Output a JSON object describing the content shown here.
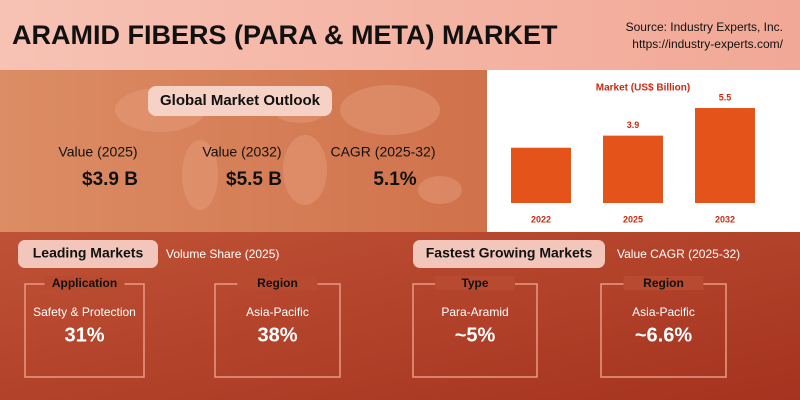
{
  "header": {
    "title": "ARAMID FIBERS (PARA & META) MARKET",
    "source": [
      "Source: Industry Experts, Inc.",
      "https://industry-experts.com/"
    ]
  },
  "outlook": {
    "title": "Global Market Outlook",
    "metrics": [
      {
        "label": "Value (2025)",
        "value": "$3.9 B"
      },
      {
        "label": "Value (2032)",
        "value": "$5.5 B"
      },
      {
        "label": "CAGR (2025-32)",
        "value": "5.1%"
      }
    ]
  },
  "chart_data": {
    "type": "bar",
    "title": "Market (US$ Billion)",
    "categories": [
      "2022",
      "2025",
      "2032"
    ],
    "values": [
      3.2,
      3.9,
      5.5
    ],
    "value_labels": [
      null,
      "3.9",
      "5.5"
    ],
    "color": "#e4541a"
  },
  "leading": {
    "title": "Leading Markets",
    "subtitle": "Volume Share (2025)",
    "items": [
      {
        "heading": "Application",
        "label": "Safety & Protection",
        "value": "31%"
      },
      {
        "heading": "Region",
        "label": "Asia-Pacific",
        "value": "38%"
      }
    ]
  },
  "fastest": {
    "title": "Fastest Growing Markets",
    "subtitle": "Value CAGR (2025-32)",
    "items": [
      {
        "heading": "Type",
        "label": "Para-Aramid",
        "value": "~5%"
      },
      {
        "heading": "Region",
        "label": "Asia-Pacific",
        "value": "~6.6%"
      }
    ]
  }
}
